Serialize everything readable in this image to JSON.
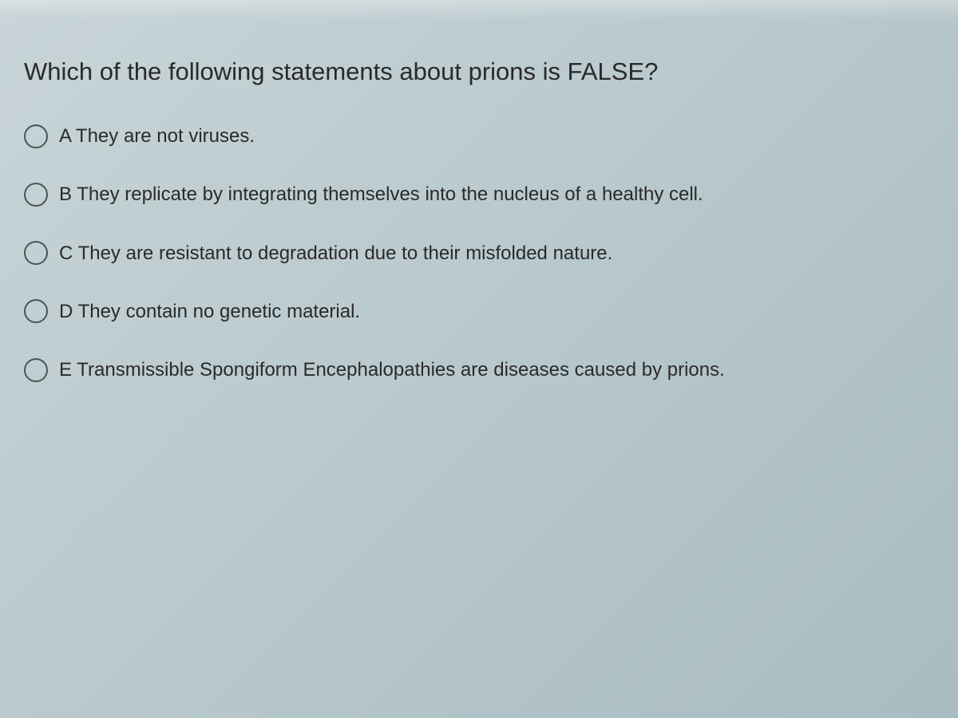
{
  "question": {
    "prompt": "Which of the following statements about prions is FALSE?",
    "options": [
      {
        "letter": "A",
        "text": "A They are not viruses."
      },
      {
        "letter": "B",
        "text": "B They replicate by integrating themselves into the nucleus of a healthy cell."
      },
      {
        "letter": "C",
        "text": "C They are resistant to degradation due to their misfolded nature."
      },
      {
        "letter": "D",
        "text": "D They contain no genetic material."
      },
      {
        "letter": "E",
        "text": "E Transmissible Spongiform Encephalopathies are diseases caused by prions."
      }
    ]
  },
  "styling": {
    "background_gradient_start": "#c8d4d8",
    "background_gradient_end": "#a8bcc2",
    "text_color": "#2a2a2a",
    "radio_border_color": "#4a5558",
    "question_fontsize": 31,
    "option_fontsize": 24,
    "radio_diameter": 30,
    "option_gap": 42
  }
}
